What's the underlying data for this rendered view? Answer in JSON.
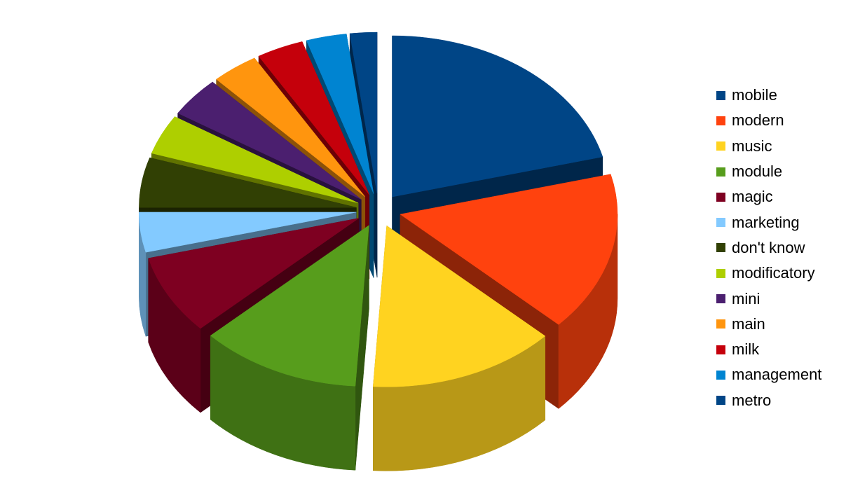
{
  "chart_data": {
    "type": "pie",
    "style": "3d-exploded",
    "title": "",
    "legend_position": "right",
    "slices": [
      {
        "label": "mobile",
        "value": 21.0,
        "color": "#004586"
      },
      {
        "label": "modern",
        "value": 16.0,
        "color": "#ff420e"
      },
      {
        "label": "music",
        "value": 14.0,
        "color": "#ffd320"
      },
      {
        "label": "module",
        "value": 12.0,
        "color": "#579d1c"
      },
      {
        "label": "magic",
        "value": 8.0,
        "color": "#7e0021"
      },
      {
        "label": "marketing",
        "value": 4.0,
        "color": "#83caff"
      },
      {
        "label": "don't know",
        "value": 5.0,
        "color": "#314004"
      },
      {
        "label": "modificatory",
        "value": 4.0,
        "color": "#aecf00"
      },
      {
        "label": "mini",
        "value": 4.0,
        "color": "#4b1f6f"
      },
      {
        "label": "main",
        "value": 3.5,
        "color": "#ff950e"
      },
      {
        "label": "milk",
        "value": 3.5,
        "color": "#c5000b"
      },
      {
        "label": "management",
        "value": 3.0,
        "color": "#0084d1"
      },
      {
        "label": "metro",
        "value": 2.0,
        "color": "#004586"
      }
    ]
  }
}
